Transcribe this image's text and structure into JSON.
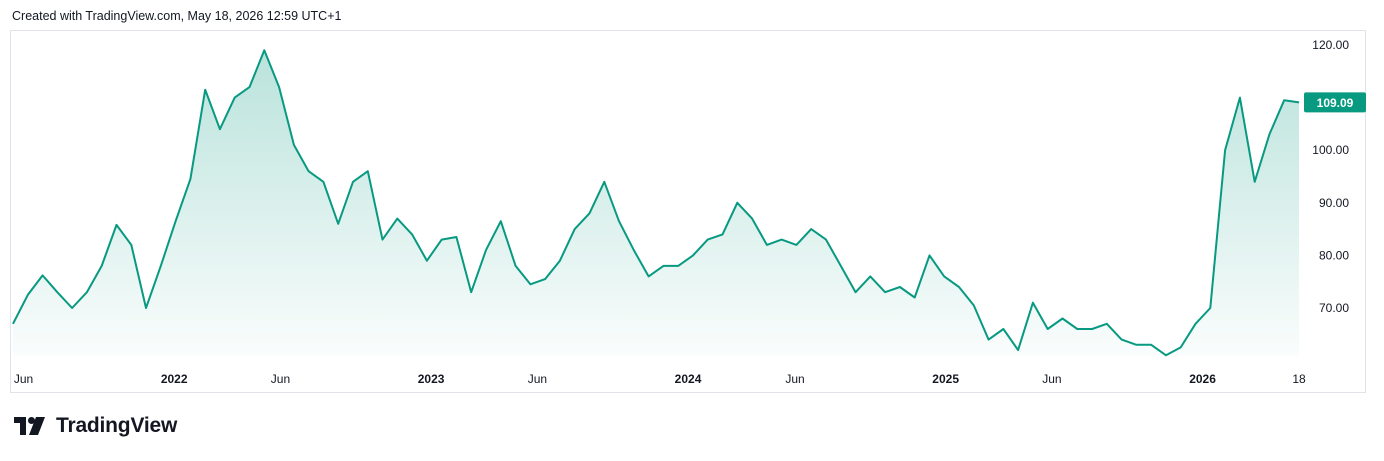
{
  "header": {
    "created_text": "Created with TradingView.com, May 18, 2026 12:59 UTC+1"
  },
  "footer": {
    "brand": "TradingView",
    "logo_icon": "tradingview-logo-icon"
  },
  "colors": {
    "line": "#089981",
    "fill_top": "#089981",
    "badge": "#089981",
    "axis_text": "#131722",
    "border": "#e0e3eb"
  },
  "chart_data": {
    "type": "area",
    "title": "",
    "xlabel": "",
    "ylabel": "",
    "ylim": [
      60,
      121
    ],
    "y_ticks": [
      120.0,
      100.0,
      90.0,
      80.0,
      70.0
    ],
    "y_tick_labels": [
      "120.00",
      "100.00",
      "90.00",
      "80.00",
      "70.00"
    ],
    "last_value": 109.09,
    "last_value_label": "109.09",
    "x_range": [
      "2021-05-17",
      "2026-05-18"
    ],
    "x_ticks": [
      {
        "label": "Jun",
        "date": "2021-06-01",
        "bold": false
      },
      {
        "label": "2022",
        "date": "2022-01-01",
        "bold": true
      },
      {
        "label": "Jun",
        "date": "2022-06-01",
        "bold": false
      },
      {
        "label": "2023",
        "date": "2023-01-01",
        "bold": true
      },
      {
        "label": "Jun",
        "date": "2023-06-01",
        "bold": false
      },
      {
        "label": "2024",
        "date": "2024-01-01",
        "bold": true
      },
      {
        "label": "Jun",
        "date": "2024-06-01",
        "bold": false
      },
      {
        "label": "2025",
        "date": "2025-01-01",
        "bold": true
      },
      {
        "label": "Jun",
        "date": "2025-06-01",
        "bold": false
      },
      {
        "label": "2026",
        "date": "2026-01-01",
        "bold": true
      },
      {
        "label": "18",
        "date": "2026-05-18",
        "bold": false
      }
    ],
    "series": [
      {
        "x": [
          "2021-05-17",
          "2021-06-07",
          "2021-06-28",
          "2021-07-19",
          "2021-08-09",
          "2021-08-30",
          "2021-09-20",
          "2021-10-11",
          "2021-11-01",
          "2021-11-22",
          "2021-12-13",
          "2022-01-03",
          "2022-01-24",
          "2022-02-14",
          "2022-03-07",
          "2022-03-28",
          "2022-04-18",
          "2022-05-09",
          "2022-05-30",
          "2022-06-20",
          "2022-07-11",
          "2022-08-01",
          "2022-08-22",
          "2022-09-12",
          "2022-10-03",
          "2022-10-24",
          "2022-11-14",
          "2022-12-05",
          "2022-12-26",
          "2023-01-16",
          "2023-02-06",
          "2023-02-27",
          "2023-03-20",
          "2023-04-10",
          "2023-05-01",
          "2023-05-22",
          "2023-06-12",
          "2023-07-03",
          "2023-07-24",
          "2023-08-14",
          "2023-09-04",
          "2023-09-25",
          "2023-10-16",
          "2023-11-06",
          "2023-11-27",
          "2023-12-18",
          "2024-01-08",
          "2024-01-29",
          "2024-02-19",
          "2024-03-11",
          "2024-04-01",
          "2024-04-22",
          "2024-05-13",
          "2024-06-03",
          "2024-06-24",
          "2024-07-15",
          "2024-08-05",
          "2024-08-26",
          "2024-09-16",
          "2024-10-07",
          "2024-10-28",
          "2024-11-18",
          "2024-12-09",
          "2024-12-30",
          "2025-01-20",
          "2025-02-10",
          "2025-03-03",
          "2025-03-24",
          "2025-04-14",
          "2025-05-05",
          "2025-05-26",
          "2025-06-16",
          "2025-07-07",
          "2025-07-28",
          "2025-08-18",
          "2025-09-08",
          "2025-09-29",
          "2025-10-20",
          "2025-11-10",
          "2025-12-01",
          "2025-12-22",
          "2026-01-12",
          "2026-02-02",
          "2026-02-23",
          "2026-03-16",
          "2026-04-06",
          "2026-04-27",
          "2026-05-18"
        ],
        "y": [
          67.0,
          72.5,
          76.2,
          73.0,
          70.0,
          73.0,
          78.0,
          85.8,
          82.0,
          70.0,
          78.0,
          86.5,
          94.5,
          111.5,
          104.0,
          110.0,
          112.0,
          119.0,
          112.0,
          101.0,
          96.0,
          94.0,
          86.0,
          94.0,
          96.0,
          83.0,
          87.0,
          84.0,
          79.0,
          83.0,
          83.5,
          73.0,
          81.0,
          86.5,
          78.0,
          74.5,
          75.5,
          79.0,
          85.0,
          88.0,
          94.0,
          86.5,
          81.0,
          76.0,
          78.0,
          78.0,
          80.0,
          83.0,
          84.0,
          90.0,
          87.0,
          82.0,
          83.0,
          82.0,
          85.0,
          83.0,
          78.0,
          73.0,
          76.0,
          73.0,
          74.0,
          72.0,
          80.0,
          76.0,
          74.0,
          70.5,
          64.0,
          66.0,
          62.0,
          71.0,
          66.0,
          68.0,
          66.0,
          66.0,
          67.0,
          64.0,
          63.0,
          63.0,
          61.0,
          62.5,
          67.0,
          70.0,
          100.0,
          110.0,
          94.0,
          103.0,
          109.5,
          109.09
        ]
      }
    ]
  }
}
